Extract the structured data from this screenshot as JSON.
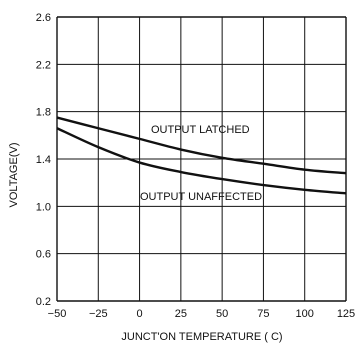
{
  "chart_data": {
    "type": "line",
    "title": "",
    "xlabel": "JUNCT'ON TEMPERATURE ( C)",
    "ylabel": "VOLTAGE(V)",
    "xlim": [
      -50,
      125
    ],
    "ylim": [
      0.2,
      2.6
    ],
    "x_ticks": [
      -50,
      -25,
      0,
      25,
      50,
      75,
      100,
      125
    ],
    "x_tick_labels": [
      "−50",
      "−25",
      "0",
      "25",
      "50",
      "75",
      "100",
      "125"
    ],
    "y_ticks": [
      0.2,
      0.6,
      1.0,
      1.4,
      1.8,
      2.2,
      2.6
    ],
    "y_tick_labels": [
      "0.2",
      "0.6",
      "1.0",
      "1.4",
      "1.8",
      "2.2",
      "2.6"
    ],
    "grid": true,
    "series": [
      {
        "name": "OUTPUT LATCHED",
        "x": [
          -50,
          -25,
          0,
          25,
          50,
          75,
          100,
          125
        ],
        "y": [
          1.75,
          1.66,
          1.57,
          1.48,
          1.41,
          1.36,
          1.31,
          1.28
        ]
      },
      {
        "name": "OUTPUT UNAFFECTED",
        "x": [
          -50,
          -25,
          0,
          25,
          50,
          75,
          100,
          125
        ],
        "y": [
          1.66,
          1.5,
          1.37,
          1.29,
          1.23,
          1.18,
          1.14,
          1.11
        ]
      }
    ]
  },
  "colors": {
    "line": "#111111",
    "grid": "#111111"
  }
}
